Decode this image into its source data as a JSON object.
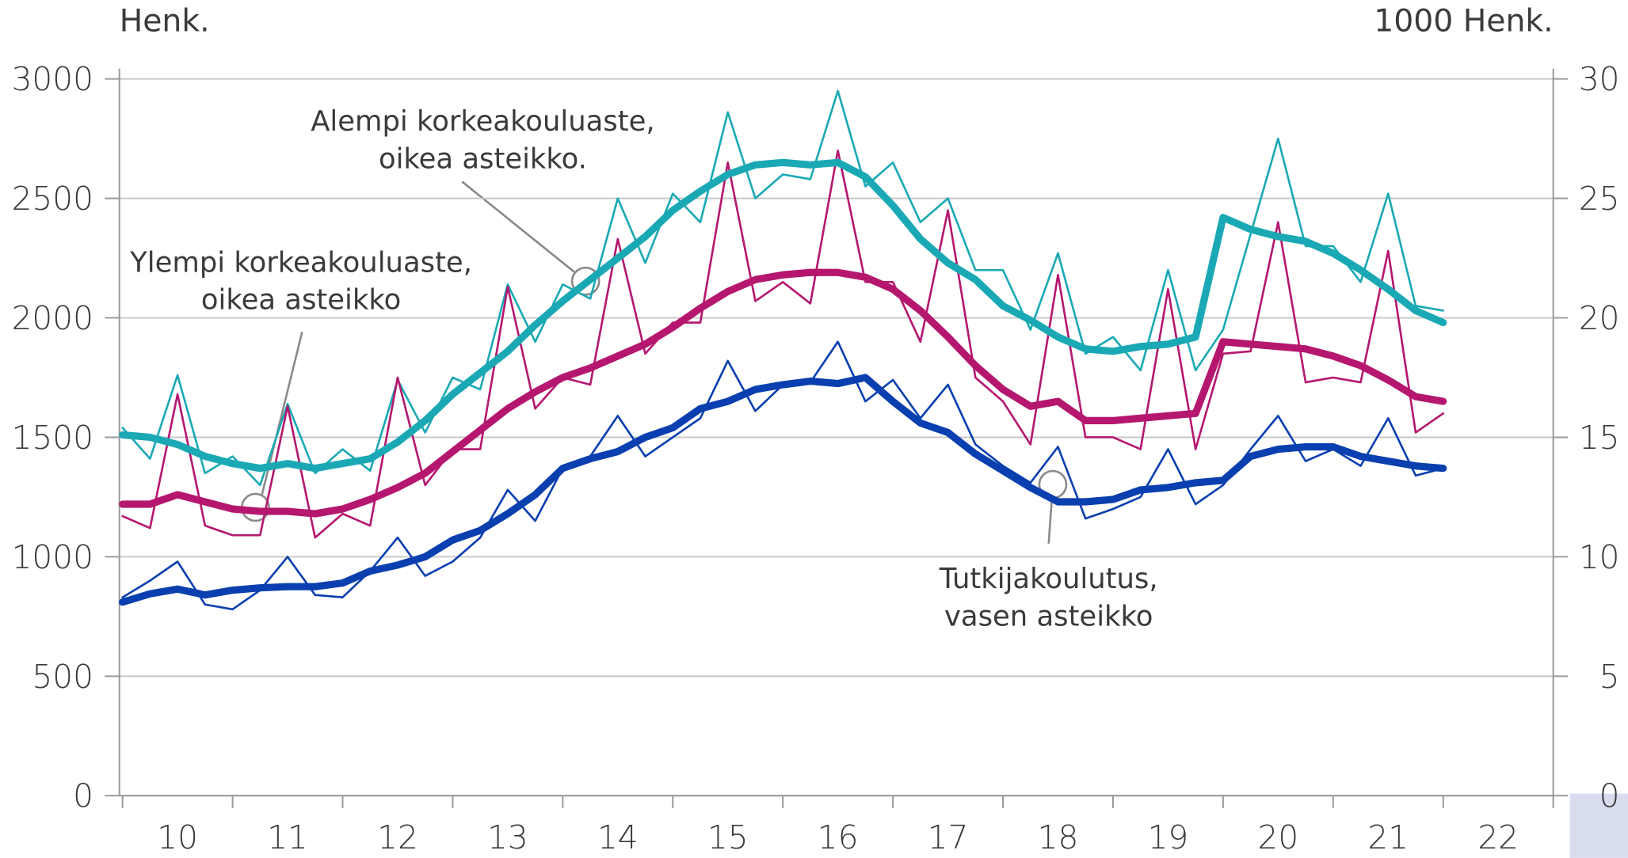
{
  "chart_data": {
    "type": "line",
    "y_label": "Henk.",
    "y2_label": "1000 Henk.",
    "categories": [
      "10",
      "11",
      "12",
      "13",
      "14",
      "15",
      "16",
      "17",
      "18",
      "19",
      "20",
      "21",
      "22"
    ],
    "xlim": [
      2010,
      2023
    ],
    "ylim": [
      0,
      3000
    ],
    "yticks": [
      0,
      500,
      1000,
      1500,
      2000,
      2500,
      3000
    ],
    "y2lim": [
      0,
      30
    ],
    "y2ticks": [
      0,
      5,
      10,
      15,
      20,
      25,
      30
    ],
    "grid": true,
    "x": [
      2010,
      2010.25,
      2010.5,
      2010.75,
      2011,
      2011.25,
      2011.5,
      2011.75,
      2012,
      2012.25,
      2012.5,
      2012.75,
      2013,
      2013.25,
      2013.5,
      2013.75,
      2014,
      2014.25,
      2014.5,
      2014.75,
      2015,
      2015.25,
      2015.5,
      2015.75,
      2016,
      2016.25,
      2016.5,
      2016.75,
      2017,
      2017.25,
      2017.5,
      2017.75,
      2018,
      2018.25,
      2018.5,
      2018.75,
      2019,
      2019.25,
      2019.5,
      2019.75,
      2020,
      2020.25,
      2020.5,
      2020.75,
      2021,
      2021.25,
      2021.5,
      2021.75,
      2022
    ],
    "series": [
      {
        "color": "#1aa9b4",
        "axis": "y2",
        "line_width": 2,
        "values": [
          15.4,
          14.1,
          17.6,
          13.5,
          14.2,
          13.0,
          16.4,
          13.5,
          14.5,
          13.6,
          17.4,
          15.2,
          17.5,
          17.0,
          21.4,
          19.0,
          21.4,
          20.8,
          25.0,
          22.3,
          25.2,
          24.0,
          28.6,
          25.0,
          26.0,
          25.8,
          29.5,
          25.5,
          26.5,
          24.0,
          25.0,
          22.0,
          22.0,
          19.5,
          22.7,
          18.5,
          19.2,
          17.8,
          22.0,
          17.8,
          19.5,
          23.5,
          27.5,
          23.0,
          23.0,
          21.5,
          25.2,
          20.5,
          20.3
        ]
      },
      {
        "color": "#b5176f",
        "axis": "y2",
        "line_width": 2,
        "values": [
          11.7,
          11.2,
          16.8,
          11.3,
          10.9,
          10.9,
          16.3,
          10.8,
          11.8,
          11.3,
          17.5,
          13.0,
          14.5,
          14.5,
          21.3,
          16.2,
          17.5,
          17.2,
          23.3,
          18.5,
          19.8,
          19.8,
          26.5,
          20.7,
          21.5,
          20.6,
          27.0,
          21.5,
          21.5,
          19.0,
          24.5,
          17.5,
          16.5,
          14.7,
          21.8,
          15.0,
          15.0,
          14.5,
          21.2,
          14.5,
          18.5,
          18.6,
          24.0,
          17.3,
          17.5,
          17.3,
          22.8,
          15.2,
          16.0
        ]
      },
      {
        "color": "#0a3fb0",
        "axis": "y",
        "line_width": 2,
        "values": [
          830,
          900,
          980,
          800,
          780,
          860,
          1000,
          840,
          830,
          940,
          1080,
          920,
          980,
          1080,
          1280,
          1150,
          1370,
          1420,
          1590,
          1420,
          1500,
          1580,
          1820,
          1610,
          1720,
          1730,
          1900,
          1650,
          1740,
          1580,
          1720,
          1470,
          1380,
          1310,
          1460,
          1160,
          1200,
          1250,
          1450,
          1220,
          1300,
          1450,
          1590,
          1400,
          1450,
          1380,
          1580,
          1340,
          1370
        ]
      },
      {
        "color": "#1aa9b4",
        "axis": "y2",
        "line_width": 7,
        "values": [
          15.1,
          15.0,
          14.7,
          14.2,
          13.9,
          13.7,
          13.9,
          13.7,
          13.9,
          14.1,
          14.8,
          15.7,
          16.8,
          17.7,
          18.6,
          19.7,
          20.7,
          21.6,
          22.5,
          23.4,
          24.5,
          25.3,
          26.0,
          26.4,
          26.5,
          26.4,
          26.5,
          25.9,
          24.7,
          23.3,
          22.3,
          21.6,
          20.5,
          19.9,
          19.2,
          18.7,
          18.6,
          18.8,
          18.9,
          19.2,
          24.2,
          23.7,
          23.4,
          23.2,
          22.7,
          22.0,
          21.2,
          20.3,
          19.8
        ]
      },
      {
        "color": "#b5176f",
        "axis": "y2",
        "line_width": 7,
        "values": [
          12.2,
          12.2,
          12.6,
          12.3,
          12.0,
          11.9,
          11.9,
          11.8,
          12.0,
          12.4,
          12.9,
          13.5,
          14.4,
          15.3,
          16.2,
          16.9,
          17.5,
          17.9,
          18.4,
          18.9,
          19.6,
          20.4,
          21.1,
          21.6,
          21.8,
          21.9,
          21.9,
          21.7,
          21.2,
          20.3,
          19.2,
          18.0,
          17.0,
          16.3,
          16.5,
          15.7,
          15.7,
          15.8,
          15.9,
          16.0,
          19.0,
          18.9,
          18.8,
          18.7,
          18.4,
          18.0,
          17.4,
          16.7,
          16.5
        ]
      },
      {
        "color": "#0a3fb0",
        "axis": "y",
        "line_width": 7,
        "values": [
          810,
          845,
          865,
          840,
          860,
          870,
          875,
          875,
          890,
          940,
          965,
          1000,
          1070,
          1110,
          1180,
          1260,
          1370,
          1410,
          1440,
          1500,
          1540,
          1620,
          1650,
          1700,
          1720,
          1735,
          1725,
          1750,
          1650,
          1560,
          1520,
          1430,
          1360,
          1290,
          1230,
          1230,
          1240,
          1280,
          1290,
          1310,
          1320,
          1420,
          1450,
          1460,
          1460,
          1420,
          1400,
          1380,
          1370
        ]
      }
    ],
    "annotations": [
      {
        "lines": [
          "Alempi korkeakouluaste,",
          "oikea asteikko."
        ]
      },
      {
        "lines": [
          "Ylempi korkeakouluaste,",
          "oikea asteikko"
        ]
      },
      {
        "lines": [
          "Tutkijakoulutus,",
          "vasen asteikko"
        ]
      }
    ]
  }
}
